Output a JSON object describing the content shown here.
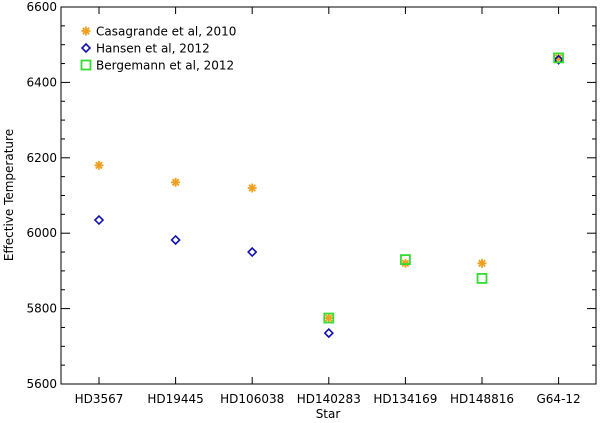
{
  "chart_data": {
    "type": "scatter",
    "title": "",
    "xlabel": "Star",
    "ylabel": "Effective Temperature",
    "categories": [
      "HD3567",
      "HD19445",
      "HD106038",
      "HD140283",
      "HD134169",
      "HD148816",
      "G64-12"
    ],
    "ylim": [
      5600,
      6600
    ],
    "yticks": [
      5600,
      5800,
      6000,
      6200,
      6400,
      6600
    ],
    "grid": false,
    "legend_position": "top-left",
    "series": [
      {
        "name": "Casagrande et al, 2010",
        "marker": "asterisk",
        "color": "#f0a020",
        "values": [
          6180,
          6135,
          6120,
          5775,
          5920,
          5920,
          6465
        ]
      },
      {
        "name": "Hansen et al, 2012",
        "marker": "diamond",
        "color": "#1010b0",
        "values": [
          6035,
          5982,
          5950,
          5735,
          null,
          null,
          6460
        ]
      },
      {
        "name": "Bergemann et al, 2012",
        "marker": "square",
        "color": "#33dd33",
        "values": [
          null,
          null,
          null,
          5775,
          5930,
          5880,
          6465
        ]
      }
    ]
  }
}
